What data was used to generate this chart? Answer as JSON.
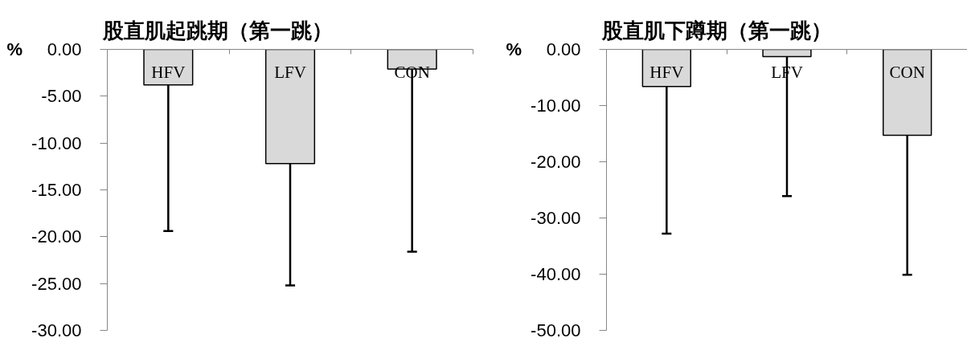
{
  "chart_data": [
    {
      "type": "bar",
      "title": "股直肌起跳期（第一跳）",
      "ylabel": "%",
      "categories": [
        "HFV",
        "LFV",
        "CON"
      ],
      "values": [
        -3.8,
        -12.2,
        -2.1
      ],
      "errors": [
        [
          -19.4,
          -3.8
        ],
        [
          -25.2,
          -12.2
        ],
        [
          -21.6,
          -2.1
        ]
      ],
      "color": "#d9d9d9",
      "ylim": [
        -30,
        0
      ],
      "yticks": [
        {
          "value": 0,
          "label": "0.00"
        },
        {
          "value": -5,
          "label": "-5.00"
        },
        {
          "value": -10,
          "label": "-10.00"
        },
        {
          "value": -15,
          "label": "-15.00"
        },
        {
          "value": -20,
          "label": "-20.00"
        },
        {
          "value": -25,
          "label": "-25.00"
        },
        {
          "value": -30,
          "label": "-30.00"
        }
      ],
      "grid": false
    },
    {
      "type": "bar",
      "title": "股直肌下蹲期（第一跳）",
      "ylabel": "%",
      "categories": [
        "HFV",
        "LFV",
        "CON"
      ],
      "values": [
        -6.6,
        -1.3,
        -15.3
      ],
      "errors": [
        [
          -32.8,
          -6.6
        ],
        [
          -26.1,
          -1.3
        ],
        [
          -40.1,
          -15.3
        ]
      ],
      "color": "#d9d9d9",
      "ylim": [
        -50,
        0
      ],
      "yticks": [
        {
          "value": 0,
          "label": "0.00"
        },
        {
          "value": -10,
          "label": "-10.00"
        },
        {
          "value": -20,
          "label": "-20.00"
        },
        {
          "value": -30,
          "label": "-30.00"
        },
        {
          "value": -40,
          "label": "-40.00"
        },
        {
          "value": -50,
          "label": "-50.00"
        }
      ],
      "grid": false
    }
  ]
}
